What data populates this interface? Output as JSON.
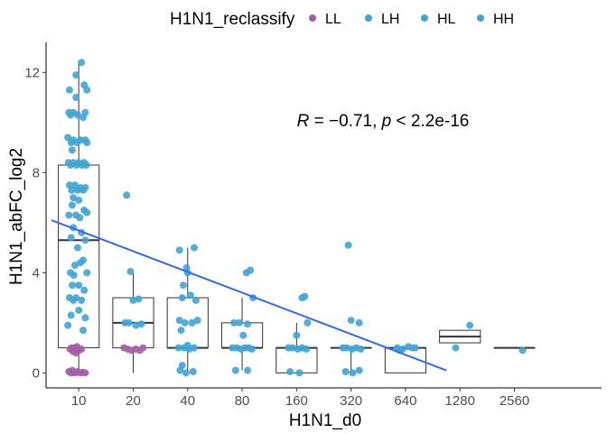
{
  "chart_data": {
    "type": "box-jitter-scatter",
    "xlabel": "H1N1_d0",
    "ylabel": "H1N1_abFC_log2",
    "categories": [
      "10",
      "20",
      "40",
      "80",
      "160",
      "320",
      "640",
      "1280",
      "2560"
    ],
    "ylim": [
      -0.6,
      13.2
    ],
    "yticks": [
      0,
      4,
      8,
      12
    ],
    "grid": false,
    "legend": {
      "title": "H1N1_reclassify",
      "placement": "top",
      "entries": [
        {
          "label": "LL",
          "color": "#A45EA5"
        },
        {
          "label": "LH",
          "color": "#3FA4D6"
        },
        {
          "label": "HL",
          "color": "#3FA4D6"
        },
        {
          "label": "HH",
          "color": "#3FA4D6"
        }
      ]
    },
    "annotation": {
      "R_label": "R",
      "R_value": " = −0.71, ",
      "p_label": "p",
      "p_value": " < 2.2e-16",
      "x": 5.0,
      "y": 10.0
    },
    "boxes": [
      {
        "category": "10",
        "min": 0,
        "q1": 1,
        "median": 5.3,
        "q3": 8.3,
        "max": 12.4
      },
      {
        "category": "20",
        "min": 0,
        "q1": 1,
        "median": 2.0,
        "q3": 3.0,
        "max": 4.0
      },
      {
        "category": "40",
        "min": 0,
        "q1": 1,
        "median": 1.0,
        "q3": 3.0,
        "max": 5.0
      },
      {
        "category": "80",
        "min": 0.1,
        "q1": 1,
        "median": 1.0,
        "q3": 2.0,
        "max": 3.0
      },
      {
        "category": "160",
        "min": 0,
        "q1": 0,
        "median": 1.0,
        "q3": 1.0,
        "max": 2.0
      },
      {
        "category": "320",
        "min": 0,
        "q1": 1,
        "median": 1.0,
        "q3": 1.0,
        "max": 1.0
      },
      {
        "category": "640",
        "min": 0,
        "q1": 0,
        "median": 1.0,
        "q3": 1.0,
        "max": 1.0
      },
      {
        "category": "1280",
        "min": 1.2,
        "q1": 1.2,
        "median": 1.45,
        "q3": 1.7,
        "max": 1.7
      },
      {
        "category": "2560",
        "min": 1.0,
        "q1": 1.0,
        "median": 1.0,
        "q3": 1.0,
        "max": 1.0
      }
    ],
    "regression_line": {
      "x_start": 0.5,
      "y_start": 6.1,
      "x_end": 7.75,
      "y_end": 0.1,
      "color": "#3366FF"
    },
    "points": [
      {
        "x": 1.05,
        "y": 12.4,
        "group": "HH"
      },
      {
        "x": 0.95,
        "y": 11.9,
        "group": "HH"
      },
      {
        "x": 1.1,
        "y": 11.5,
        "group": "HH"
      },
      {
        "x": 0.83,
        "y": 11.3,
        "group": "HH"
      },
      {
        "x": 1.15,
        "y": 11.3,
        "group": "HH"
      },
      {
        "x": 0.95,
        "y": 11.0,
        "group": "HH"
      },
      {
        "x": 0.82,
        "y": 10.4,
        "group": "HH"
      },
      {
        "x": 0.9,
        "y": 10.4,
        "group": "HH"
      },
      {
        "x": 1.12,
        "y": 10.4,
        "group": "HH"
      },
      {
        "x": 0.85,
        "y": 10.3,
        "group": "HH"
      },
      {
        "x": 0.98,
        "y": 10.3,
        "group": "HH"
      },
      {
        "x": 1.08,
        "y": 10.2,
        "group": "HH"
      },
      {
        "x": 0.8,
        "y": 9.4,
        "group": "HH"
      },
      {
        "x": 0.9,
        "y": 9.3,
        "group": "HH"
      },
      {
        "x": 1.03,
        "y": 9.3,
        "group": "HH"
      },
      {
        "x": 1.12,
        "y": 9.3,
        "group": "HH"
      },
      {
        "x": 0.86,
        "y": 9.2,
        "group": "HH"
      },
      {
        "x": 0.97,
        "y": 9.2,
        "group": "HH"
      },
      {
        "x": 1.15,
        "y": 9.2,
        "group": "HH"
      },
      {
        "x": 0.88,
        "y": 8.9,
        "group": "HH"
      },
      {
        "x": 0.81,
        "y": 8.4,
        "group": "HH"
      },
      {
        "x": 0.9,
        "y": 8.4,
        "group": "HH"
      },
      {
        "x": 1.0,
        "y": 8.4,
        "group": "HH"
      },
      {
        "x": 1.1,
        "y": 8.4,
        "group": "HH"
      },
      {
        "x": 0.85,
        "y": 8.3,
        "group": "HH"
      },
      {
        "x": 0.96,
        "y": 8.3,
        "group": "HH"
      },
      {
        "x": 1.06,
        "y": 8.3,
        "group": "HH"
      },
      {
        "x": 1.14,
        "y": 8.3,
        "group": "HH"
      },
      {
        "x": 0.83,
        "y": 7.5,
        "group": "HH"
      },
      {
        "x": 0.93,
        "y": 7.5,
        "group": "HH"
      },
      {
        "x": 1.03,
        "y": 7.4,
        "group": "HH"
      },
      {
        "x": 1.12,
        "y": 7.4,
        "group": "HH"
      },
      {
        "x": 0.87,
        "y": 7.3,
        "group": "HH"
      },
      {
        "x": 0.98,
        "y": 7.3,
        "group": "HH"
      },
      {
        "x": 1.08,
        "y": 7.3,
        "group": "HH"
      },
      {
        "x": 0.9,
        "y": 7.0,
        "group": "HH"
      },
      {
        "x": 1.0,
        "y": 6.9,
        "group": "HH"
      },
      {
        "x": 0.88,
        "y": 6.7,
        "group": "HH"
      },
      {
        "x": 1.1,
        "y": 6.5,
        "group": "HH"
      },
      {
        "x": 0.82,
        "y": 6.3,
        "group": "HH"
      },
      {
        "x": 0.95,
        "y": 6.3,
        "group": "HH"
      },
      {
        "x": 1.15,
        "y": 6.4,
        "group": "HH"
      },
      {
        "x": 1.02,
        "y": 6.2,
        "group": "HH"
      },
      {
        "x": 0.9,
        "y": 5.8,
        "group": "HH"
      },
      {
        "x": 1.05,
        "y": 5.6,
        "group": "HH"
      },
      {
        "x": 0.86,
        "y": 5.4,
        "group": "HH"
      },
      {
        "x": 1.12,
        "y": 5.3,
        "group": "HH"
      },
      {
        "x": 0.98,
        "y": 5.0,
        "group": "HH"
      },
      {
        "x": 1.08,
        "y": 4.5,
        "group": "HH"
      },
      {
        "x": 0.93,
        "y": 4.3,
        "group": "HH"
      },
      {
        "x": 1.03,
        "y": 4.4,
        "group": "HH"
      },
      {
        "x": 0.85,
        "y": 4.0,
        "group": "HH"
      },
      {
        "x": 1.15,
        "y": 4.0,
        "group": "HH"
      },
      {
        "x": 0.91,
        "y": 3.9,
        "group": "HH"
      },
      {
        "x": 1.0,
        "y": 3.5,
        "group": "HH"
      },
      {
        "x": 0.88,
        "y": 3.5,
        "group": "HH"
      },
      {
        "x": 1.1,
        "y": 3.3,
        "group": "HH"
      },
      {
        "x": 0.83,
        "y": 3.0,
        "group": "LH"
      },
      {
        "x": 0.95,
        "y": 3.0,
        "group": "LH"
      },
      {
        "x": 1.05,
        "y": 2.9,
        "group": "LH"
      },
      {
        "x": 0.9,
        "y": 2.9,
        "group": "LH"
      },
      {
        "x": 1.0,
        "y": 2.5,
        "group": "LH"
      },
      {
        "x": 0.86,
        "y": 2.3,
        "group": "LH"
      },
      {
        "x": 1.12,
        "y": 2.2,
        "group": "LH"
      },
      {
        "x": 0.8,
        "y": 1.9,
        "group": "LH"
      },
      {
        "x": 1.08,
        "y": 1.7,
        "group": "LH"
      },
      {
        "x": 0.87,
        "y": 1.0,
        "group": "LL"
      },
      {
        "x": 0.92,
        "y": 1.0,
        "group": "LL"
      },
      {
        "x": 0.97,
        "y": 1.05,
        "group": "LL"
      },
      {
        "x": 0.84,
        "y": 0.95,
        "group": "LL"
      },
      {
        "x": 1.0,
        "y": 0.9,
        "group": "LL"
      },
      {
        "x": 0.9,
        "y": 0.85,
        "group": "LL"
      },
      {
        "x": 0.95,
        "y": 0.8,
        "group": "LL"
      },
      {
        "x": 1.05,
        "y": 0.95,
        "group": "LL"
      },
      {
        "x": 0.82,
        "y": 0.05,
        "group": "LL"
      },
      {
        "x": 0.88,
        "y": 0.1,
        "group": "LL"
      },
      {
        "x": 0.93,
        "y": 0.0,
        "group": "LL"
      },
      {
        "x": 0.98,
        "y": 0.05,
        "group": "LL"
      },
      {
        "x": 1.03,
        "y": 0.0,
        "group": "LL"
      },
      {
        "x": 1.08,
        "y": 0.02,
        "group": "LL"
      },
      {
        "x": 0.86,
        "y": 0.0,
        "group": "LL"
      },
      {
        "x": 1.12,
        "y": 0.0,
        "group": "LL"
      },
      {
        "x": 1.88,
        "y": 7.1,
        "group": "HH"
      },
      {
        "x": 1.95,
        "y": 4.05,
        "group": "HH"
      },
      {
        "x": 2.1,
        "y": 2.95,
        "group": "LH"
      },
      {
        "x": 2.0,
        "y": 2.9,
        "group": "LH"
      },
      {
        "x": 1.85,
        "y": 2.0,
        "group": "LH"
      },
      {
        "x": 1.92,
        "y": 2.0,
        "group": "LH"
      },
      {
        "x": 2.15,
        "y": 1.95,
        "group": "LH"
      },
      {
        "x": 2.05,
        "y": 1.9,
        "group": "LH"
      },
      {
        "x": 1.83,
        "y": 1.0,
        "group": "LL"
      },
      {
        "x": 1.9,
        "y": 0.95,
        "group": "LL"
      },
      {
        "x": 1.97,
        "y": 0.9,
        "group": "LL"
      },
      {
        "x": 2.05,
        "y": 0.95,
        "group": "LL"
      },
      {
        "x": 2.12,
        "y": 0.9,
        "group": "LL"
      },
      {
        "x": 2.18,
        "y": 1.0,
        "group": "LL"
      },
      {
        "x": 2.85,
        "y": 4.9,
        "group": "HH"
      },
      {
        "x": 3.12,
        "y": 5.0,
        "group": "HH"
      },
      {
        "x": 2.98,
        "y": 4.2,
        "group": "HH"
      },
      {
        "x": 3.0,
        "y": 4.0,
        "group": "HH"
      },
      {
        "x": 2.92,
        "y": 3.5,
        "group": "HH"
      },
      {
        "x": 3.05,
        "y": 3.1,
        "group": "LH"
      },
      {
        "x": 2.9,
        "y": 3.0,
        "group": "LH"
      },
      {
        "x": 3.15,
        "y": 2.9,
        "group": "LH"
      },
      {
        "x": 2.85,
        "y": 2.1,
        "group": "LH"
      },
      {
        "x": 2.95,
        "y": 2.0,
        "group": "LH"
      },
      {
        "x": 3.08,
        "y": 2.0,
        "group": "LH"
      },
      {
        "x": 3.18,
        "y": 2.1,
        "group": "LH"
      },
      {
        "x": 2.88,
        "y": 1.7,
        "group": "LH"
      },
      {
        "x": 3.0,
        "y": 1.1,
        "group": "LH"
      },
      {
        "x": 2.83,
        "y": 1.0,
        "group": "LH"
      },
      {
        "x": 2.93,
        "y": 1.0,
        "group": "LH"
      },
      {
        "x": 3.03,
        "y": 0.95,
        "group": "LH"
      },
      {
        "x": 3.12,
        "y": 1.0,
        "group": "LH"
      },
      {
        "x": 2.86,
        "y": 0.1,
        "group": "LH"
      },
      {
        "x": 2.97,
        "y": 0.0,
        "group": "LH"
      },
      {
        "x": 3.1,
        "y": 0.05,
        "group": "LH"
      },
      {
        "x": 2.9,
        "y": 0.3,
        "group": "LH"
      },
      {
        "x": 4.15,
        "y": 4.1,
        "group": "HH"
      },
      {
        "x": 4.08,
        "y": 4.0,
        "group": "HH"
      },
      {
        "x": 4.2,
        "y": 3.0,
        "group": "HH"
      },
      {
        "x": 3.85,
        "y": 2.0,
        "group": "LH"
      },
      {
        "x": 3.95,
        "y": 2.0,
        "group": "LH"
      },
      {
        "x": 4.1,
        "y": 1.95,
        "group": "LH"
      },
      {
        "x": 4.02,
        "y": 1.5,
        "group": "LH"
      },
      {
        "x": 3.82,
        "y": 1.0,
        "group": "LH"
      },
      {
        "x": 3.9,
        "y": 1.0,
        "group": "LH"
      },
      {
        "x": 3.98,
        "y": 0.95,
        "group": "LH"
      },
      {
        "x": 4.05,
        "y": 1.0,
        "group": "LH"
      },
      {
        "x": 4.12,
        "y": 1.0,
        "group": "LH"
      },
      {
        "x": 4.18,
        "y": 0.95,
        "group": "LH"
      },
      {
        "x": 3.88,
        "y": 0.1,
        "group": "LH"
      },
      {
        "x": 4.1,
        "y": 0.1,
        "group": "LH"
      },
      {
        "x": 5.1,
        "y": 3.0,
        "group": "HH"
      },
      {
        "x": 5.15,
        "y": 3.05,
        "group": "HH"
      },
      {
        "x": 5.2,
        "y": 2.0,
        "group": "LH"
      },
      {
        "x": 5.0,
        "y": 1.5,
        "group": "LH"
      },
      {
        "x": 4.85,
        "y": 1.0,
        "group": "LH"
      },
      {
        "x": 4.93,
        "y": 1.0,
        "group": "LH"
      },
      {
        "x": 5.02,
        "y": 0.95,
        "group": "LH"
      },
      {
        "x": 5.1,
        "y": 1.0,
        "group": "LH"
      },
      {
        "x": 5.18,
        "y": 0.95,
        "group": "LH"
      },
      {
        "x": 4.88,
        "y": 0.05,
        "group": "LH"
      },
      {
        "x": 5.05,
        "y": 0.0,
        "group": "LH"
      },
      {
        "x": 5.95,
        "y": 5.1,
        "group": "HH"
      },
      {
        "x": 6.0,
        "y": 2.1,
        "group": "LH"
      },
      {
        "x": 6.15,
        "y": 2.0,
        "group": "LH"
      },
      {
        "x": 5.85,
        "y": 1.0,
        "group": "LH"
      },
      {
        "x": 5.92,
        "y": 1.0,
        "group": "LH"
      },
      {
        "x": 6.02,
        "y": 0.95,
        "group": "LH"
      },
      {
        "x": 6.1,
        "y": 1.0,
        "group": "LH"
      },
      {
        "x": 6.18,
        "y": 0.95,
        "group": "LH"
      },
      {
        "x": 5.9,
        "y": 0.05,
        "group": "LH"
      },
      {
        "x": 6.03,
        "y": 0.0,
        "group": "LH"
      },
      {
        "x": 6.15,
        "y": 0.1,
        "group": "LH"
      },
      {
        "x": 6.85,
        "y": 1.0,
        "group": "LH"
      },
      {
        "x": 6.95,
        "y": 0.95,
        "group": "LH"
      },
      {
        "x": 7.05,
        "y": 1.05,
        "group": "LH"
      },
      {
        "x": 7.12,
        "y": 1.0,
        "group": "LH"
      },
      {
        "x": 7.18,
        "y": 1.0,
        "group": "LH"
      },
      {
        "x": 6.9,
        "y": 0.9,
        "group": "LH"
      },
      {
        "x": 7.92,
        "y": 1.0,
        "group": "LH"
      },
      {
        "x": 8.18,
        "y": 1.9,
        "group": "LH"
      },
      {
        "x": 9.15,
        "y": 0.9,
        "group": "LH"
      }
    ]
  }
}
